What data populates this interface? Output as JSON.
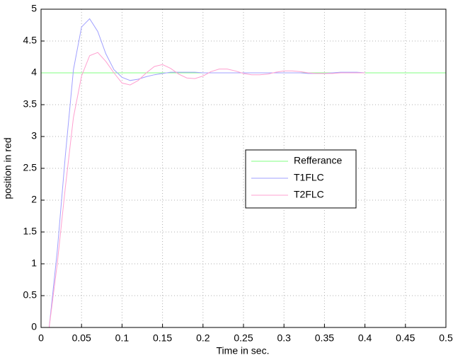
{
  "chart_data": {
    "type": "line",
    "xlabel": "Time in sec.",
    "ylabel": "position in red",
    "xlim": [
      0,
      0.5
    ],
    "ylim": [
      0,
      5
    ],
    "xticks": [
      0,
      0.05,
      0.1,
      0.15,
      0.2,
      0.25,
      0.3,
      0.35,
      0.4,
      0.45,
      0.5
    ],
    "yticks": [
      0,
      0.5,
      1,
      1.5,
      2,
      2.5,
      3,
      3.5,
      4,
      4.5,
      5
    ],
    "grid": true,
    "legend": "center-right",
    "series": [
      {
        "name": "Refferance",
        "color": "#80ff80",
        "x": [
          0,
          0.5
        ],
        "values": [
          4,
          4
        ]
      },
      {
        "name": "T1FLC",
        "color": "#a0a0ff",
        "x": [
          0.01,
          0.02,
          0.03,
          0.04,
          0.05,
          0.06,
          0.07,
          0.08,
          0.09,
          0.1,
          0.11,
          0.12,
          0.13,
          0.14,
          0.15,
          0.16,
          0.17,
          0.18,
          0.19,
          0.2,
          0.21,
          0.22,
          0.23,
          0.24,
          0.25,
          0.26,
          0.27,
          0.28,
          0.29,
          0.3,
          0.31,
          0.32,
          0.33,
          0.34,
          0.35,
          0.36,
          0.37,
          0.38,
          0.39,
          0.4
        ],
        "values": [
          0,
          1.2,
          2.7,
          4.05,
          4.72,
          4.85,
          4.65,
          4.3,
          4.05,
          3.93,
          3.88,
          3.9,
          3.94,
          3.97,
          3.99,
          4.01,
          4.01,
          4.01,
          4.01,
          4.0,
          4.0,
          4.0,
          4.0,
          4.0,
          4.0,
          4.0,
          4.0,
          4.0,
          4.0,
          4.0,
          4.0,
          4.0,
          3.99,
          3.99,
          3.99,
          4.0,
          4.01,
          4.01,
          4.01,
          4.0
        ]
      },
      {
        "name": "T2FLC",
        "color": "#ffa0d0",
        "x": [
          0.01,
          0.02,
          0.03,
          0.04,
          0.05,
          0.06,
          0.07,
          0.08,
          0.09,
          0.1,
          0.11,
          0.12,
          0.13,
          0.14,
          0.15,
          0.16,
          0.17,
          0.18,
          0.19,
          0.2,
          0.21,
          0.22,
          0.23,
          0.24,
          0.25,
          0.26,
          0.27,
          0.28,
          0.29,
          0.3,
          0.31,
          0.32,
          0.33,
          0.34,
          0.35,
          0.36,
          0.37,
          0.38,
          0.39,
          0.4
        ],
        "values": [
          0,
          1.0,
          2.2,
          3.3,
          3.95,
          4.27,
          4.32,
          4.18,
          4.0,
          3.84,
          3.81,
          3.88,
          4.0,
          4.1,
          4.13,
          4.07,
          3.98,
          3.92,
          3.91,
          3.95,
          4.02,
          4.06,
          4.06,
          4.03,
          3.99,
          3.97,
          3.97,
          3.98,
          4.01,
          4.03,
          4.03,
          4.02,
          4.0,
          3.99,
          3.99,
          3.99,
          4.0,
          4.0,
          4.0,
          4.0
        ]
      }
    ]
  }
}
